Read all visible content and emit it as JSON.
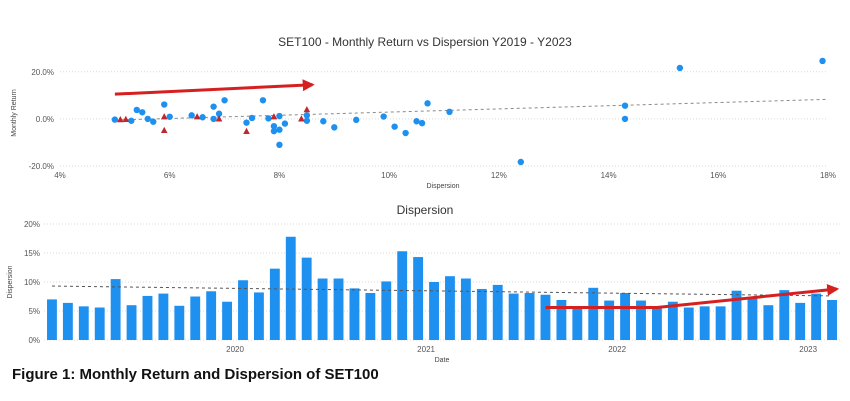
{
  "caption": "Figure 1: Monthly Return and Dispersion of SET100",
  "colors": {
    "blue": "#1e90f0",
    "red": "#c0282d",
    "trend": "#8a8a8a",
    "grid": "#d9d9d9",
    "arrow": "#d62020"
  },
  "chart_data": [
    {
      "type": "scatter",
      "title": "SET100 - Monthly Return vs Dispersion Y2019 - Y2023",
      "xlabel": "Dispersion",
      "ylabel": "Monthly Return",
      "xlim": [
        4,
        18
      ],
      "ylim": [
        -20,
        25
      ],
      "x_ticks": [
        4,
        6,
        8,
        10,
        12,
        14,
        16,
        18
      ],
      "x_tick_labels": [
        "4%",
        "6%",
        "8%",
        "10%",
        "12%",
        "14%",
        "16%",
        "18%"
      ],
      "y_ticks": [
        -20,
        0,
        20
      ],
      "y_tick_labels": [
        "-20.0%",
        "0.0%",
        "20.0%"
      ],
      "grid": "horizontal, dotted",
      "trendline": {
        "style": "dashed",
        "from": [
          5.0,
          -0.5
        ],
        "to": [
          18.0,
          8.3
        ]
      },
      "annotation_arrow": {
        "from": [
          5.0,
          10.5
        ],
        "to": [
          8.6,
          14.5
        ]
      },
      "series": [
        {
          "marker": "circle",
          "points": [
            [
              5.0,
              -0.3
            ],
            [
              5.3,
              -0.8
            ],
            [
              5.4,
              3.8
            ],
            [
              5.5,
              2.8
            ],
            [
              5.6,
              0.0
            ],
            [
              5.7,
              -1.2
            ],
            [
              5.9,
              6.1
            ],
            [
              6.0,
              0.9
            ],
            [
              6.4,
              1.5
            ],
            [
              6.6,
              0.7
            ],
            [
              6.8,
              5.2
            ],
            [
              6.8,
              0.0
            ],
            [
              6.9,
              2.2
            ],
            [
              7.0,
              7.9
            ],
            [
              7.4,
              -1.6
            ],
            [
              7.5,
              0.4
            ],
            [
              7.7,
              7.9
            ],
            [
              7.8,
              0.2
            ],
            [
              7.9,
              -3.1
            ],
            [
              7.9,
              -5.2
            ],
            [
              8.0,
              1.2
            ],
            [
              8.0,
              -4.6
            ],
            [
              8.0,
              -11.0
            ],
            [
              8.1,
              -2.0
            ],
            [
              8.5,
              1.5
            ],
            [
              8.5,
              -0.8
            ],
            [
              8.8,
              -1.0
            ],
            [
              9.0,
              -3.6
            ],
            [
              9.4,
              -0.4
            ],
            [
              9.9,
              1.0
            ],
            [
              10.1,
              -3.3
            ],
            [
              10.3,
              -6.0
            ],
            [
              10.5,
              -1.0
            ],
            [
              10.6,
              -1.8
            ],
            [
              10.7,
              6.6
            ],
            [
              11.1,
              3.0
            ],
            [
              12.4,
              -18.3
            ],
            [
              14.3,
              5.6
            ],
            [
              14.3,
              0.0
            ],
            [
              15.3,
              21.6
            ],
            [
              17.9,
              24.6
            ]
          ]
        },
        {
          "marker": "triangle",
          "points": [
            [
              5.1,
              -0.3
            ],
            [
              5.2,
              -0.2
            ],
            [
              5.9,
              -4.9
            ],
            [
              5.9,
              0.9
            ],
            [
              6.5,
              0.9
            ],
            [
              6.9,
              0.0
            ],
            [
              7.4,
              -5.3
            ],
            [
              7.9,
              0.9
            ],
            [
              8.4,
              0.0
            ],
            [
              8.5,
              3.9
            ]
          ]
        }
      ]
    },
    {
      "type": "bar",
      "title": "Dispersion",
      "xlabel": "Date",
      "ylabel": "Dispersion",
      "ylim": [
        0,
        20
      ],
      "y_ticks": [
        0,
        5,
        10,
        15,
        20
      ],
      "y_tick_labels": [
        "0%",
        "5%",
        "10%",
        "15%",
        "20%"
      ],
      "year_labels": [
        {
          "label": "2020",
          "bar_index": 12
        },
        {
          "label": "2021",
          "bar_index": 24
        },
        {
          "label": "2022",
          "bar_index": 36
        },
        {
          "label": "2023",
          "bar_index": 48
        }
      ],
      "grid": "horizontal, dotted",
      "values": [
        7.0,
        6.4,
        5.8,
        5.6,
        10.5,
        6.0,
        7.6,
        8.0,
        5.9,
        7.5,
        8.4,
        6.6,
        10.3,
        8.2,
        12.3,
        17.8,
        14.2,
        10.6,
        10.6,
        8.9,
        8.1,
        10.1,
        15.3,
        14.3,
        10.0,
        11.0,
        10.6,
        8.8,
        9.5,
        8.0,
        8.1,
        7.8,
        6.9,
        5.8,
        9.0,
        6.8,
        8.1,
        6.8,
        5.6,
        6.6,
        5.6,
        5.8,
        5.8,
        8.5,
        7.4,
        6.0,
        8.6,
        6.4,
        8.0,
        6.9
      ],
      "trendline": {
        "style": "dashed",
        "from": [
          0,
          9.3
        ],
        "to": [
          49,
          7.6
        ]
      },
      "annotation_arrow": {
        "points": [
          [
            31.5,
            5.6
          ],
          [
            38.5,
            5.6
          ],
          [
            49.8,
            8.8
          ]
        ]
      }
    }
  ]
}
